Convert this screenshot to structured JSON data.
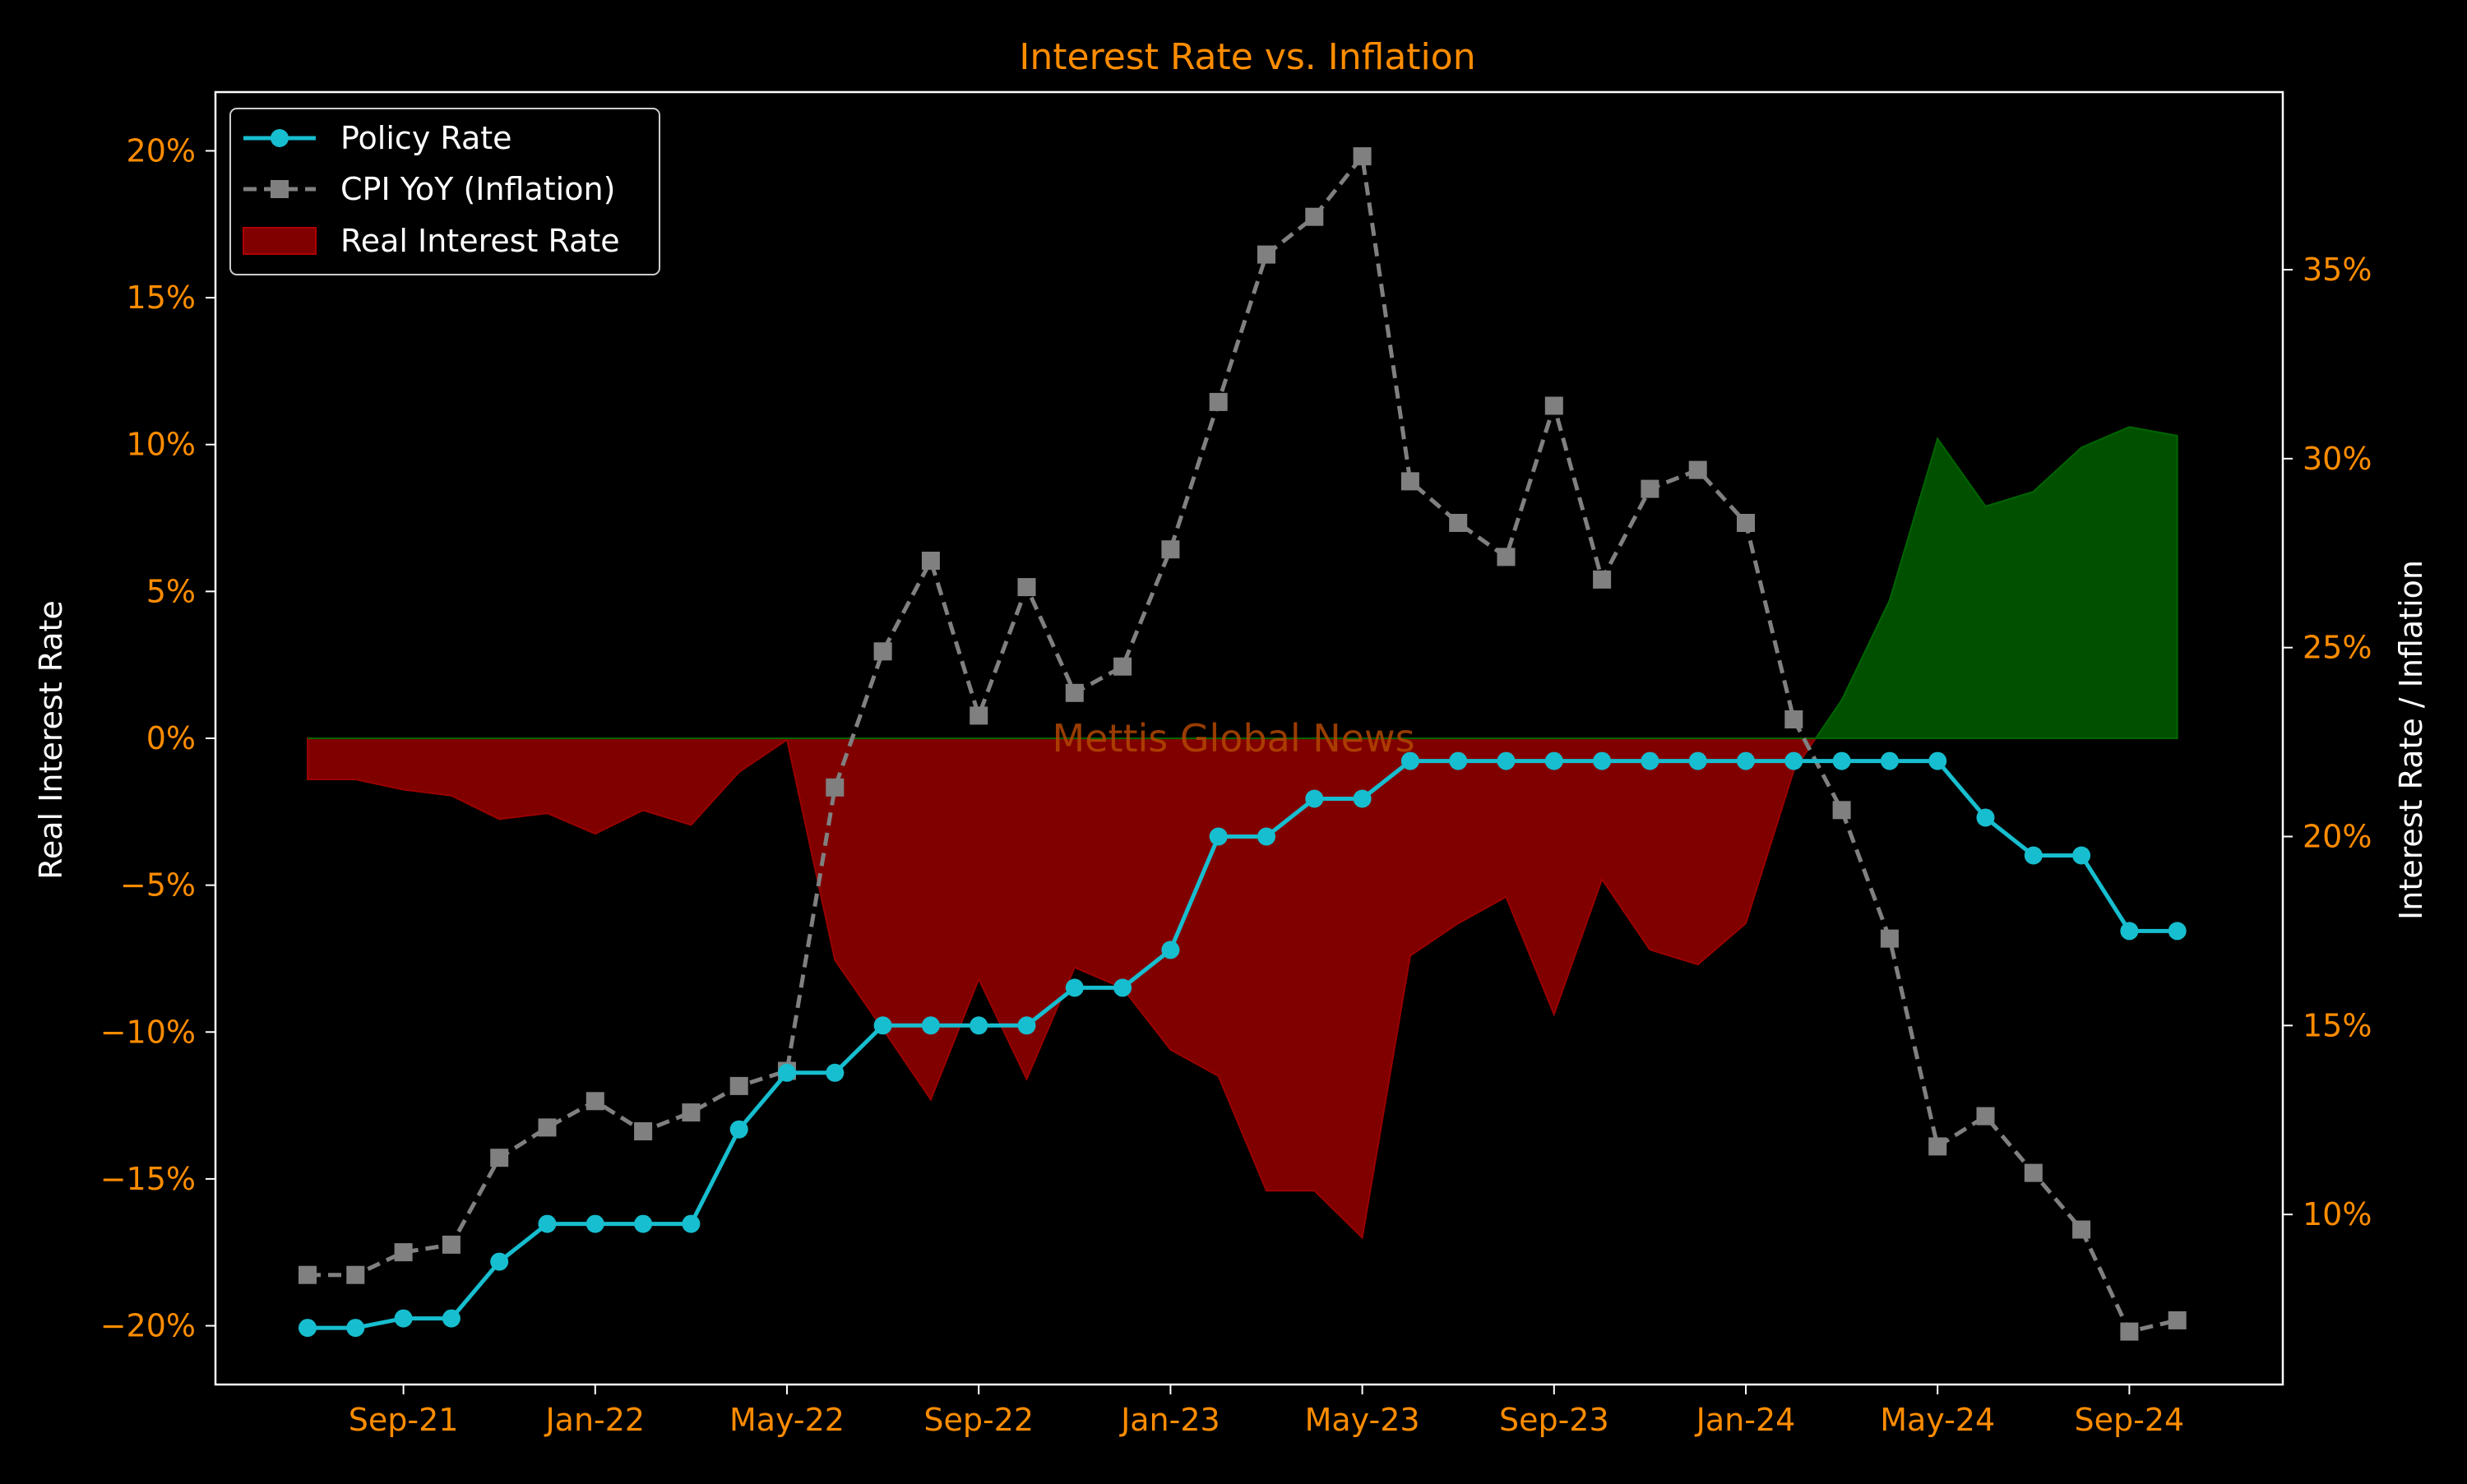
{
  "colors": {
    "background": "#000000",
    "axis": "#ffffff",
    "tick_label": "#ff8c00",
    "title": "#ff8c00",
    "axis_label": "#ffffff",
    "policy_rate": "#17becf",
    "cpi": "#808080",
    "real_negative": "#800000",
    "real_positive": "#005000",
    "watermark": "#b34700"
  },
  "chart_data": {
    "type": "line",
    "title": "Interest Rate vs. Inflation",
    "watermark": "Mettis Global News",
    "left_axis": {
      "label": "Real Interest Rate",
      "range": [
        -22,
        22
      ],
      "ticks": [
        20,
        15,
        10,
        5,
        0,
        -5,
        -10,
        -15,
        -20
      ],
      "tick_labels": [
        "20%",
        "15%",
        "10%",
        "5%",
        "0%",
        "−5%",
        "−10%",
        "−15%",
        "−20%"
      ]
    },
    "right_axis": {
      "label": "Interest Rate / Inflation",
      "range": [
        5.5,
        39.7
      ],
      "ticks": [
        35,
        30,
        25,
        20,
        15,
        10
      ],
      "tick_labels": [
        "35%",
        "30%",
        "25%",
        "20%",
        "15%",
        "10%"
      ]
    },
    "x_axis": {
      "start_month": "2021-06",
      "months_shown": 41,
      "ticks": [
        {
          "index": 2,
          "label": "Sep-21"
        },
        {
          "index": 6,
          "label": "Jan-22"
        },
        {
          "index": 10,
          "label": "May-22"
        },
        {
          "index": 14,
          "label": "Sep-22"
        },
        {
          "index": 18,
          "label": "Jan-23"
        },
        {
          "index": 22,
          "label": "May-23"
        },
        {
          "index": 26,
          "label": "Sep-23"
        },
        {
          "index": 30,
          "label": "Jan-24"
        },
        {
          "index": 34,
          "label": "May-24"
        },
        {
          "index": 38,
          "label": "Sep-24"
        }
      ]
    },
    "legend": {
      "position": "top-left",
      "entries": [
        "Policy Rate",
        "CPI YoY (Inflation)",
        "Real Interest Rate"
      ]
    },
    "series": [
      {
        "name": "Policy Rate",
        "axis": "right",
        "marker": "circle",
        "values": [
          7.0,
          7.0,
          7.25,
          7.25,
          8.75,
          9.75,
          9.75,
          9.75,
          9.75,
          12.25,
          13.75,
          13.75,
          15.0,
          15.0,
          15.0,
          15.0,
          16.0,
          16.0,
          17.0,
          20.0,
          20.0,
          21.0,
          21.0,
          22.0,
          22.0,
          22.0,
          22.0,
          22.0,
          22.0,
          22.0,
          22.0,
          22.0,
          22.0,
          22.0,
          22.0,
          20.5,
          19.5,
          19.5,
          17.5,
          17.5
        ]
      },
      {
        "name": "CPI YoY (Inflation)",
        "axis": "right",
        "marker": "square",
        "values": [
          8.4,
          8.4,
          9.0,
          9.2,
          11.5,
          12.3,
          13.0,
          12.2,
          12.7,
          13.4,
          13.8,
          21.3,
          24.9,
          27.3,
          23.2,
          26.6,
          23.8,
          24.5,
          27.6,
          31.5,
          35.4,
          36.4,
          38.0,
          29.4,
          28.3,
          27.4,
          31.4,
          26.8,
          29.2,
          29.7,
          28.3,
          23.1,
          20.7,
          17.3,
          11.8,
          12.6,
          11.1,
          9.6,
          6.9,
          7.2
        ]
      },
      {
        "name": "Real Interest Rate",
        "axis": "left",
        "type": "area",
        "values": [
          -1.4,
          -1.4,
          -1.75,
          -1.95,
          -2.75,
          -2.55,
          -3.25,
          -2.45,
          -2.95,
          -1.15,
          -0.05,
          -7.55,
          -9.9,
          -12.3,
          -8.2,
          -11.6,
          -7.8,
          -8.5,
          -10.6,
          -11.5,
          -15.4,
          -15.4,
          -17.0,
          -7.4,
          -6.3,
          -5.4,
          -9.4,
          -4.8,
          -7.2,
          -7.7,
          -6.3,
          -1.1,
          1.3,
          4.7,
          10.2,
          7.9,
          8.4,
          9.9,
          10.6,
          10.3
        ]
      }
    ]
  }
}
